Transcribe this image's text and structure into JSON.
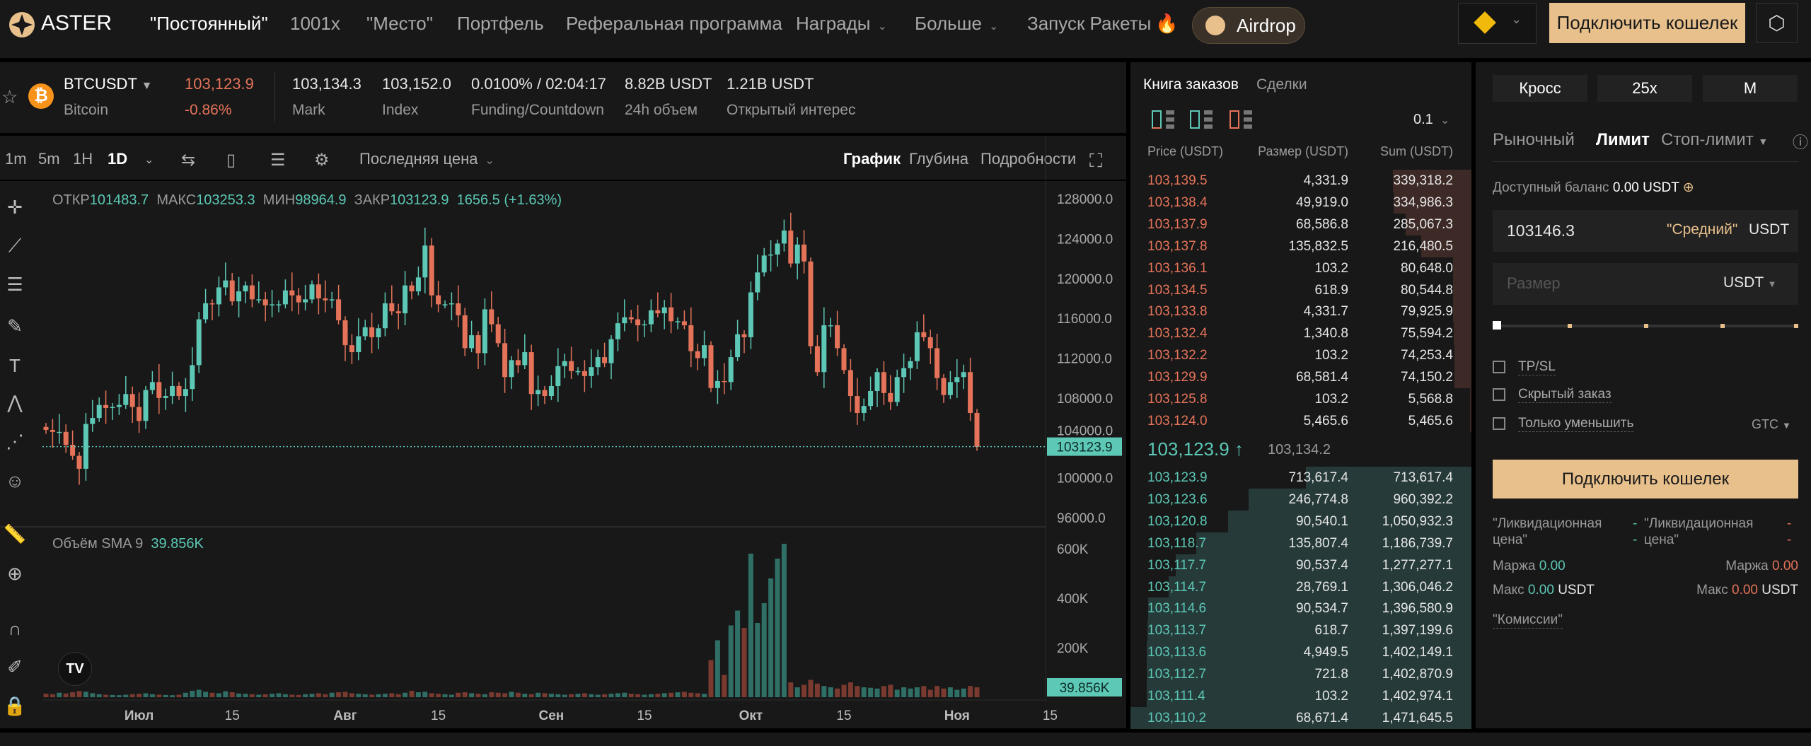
{
  "nav": {
    "brand": "ASTER",
    "items": [
      "\"Постоянный\"",
      "1001x",
      "\"Место\"",
      "Портфель",
      "Реферальная программа",
      "Награды",
      "Больше",
      "Запуск Ракеты"
    ],
    "airdrop": "Airdrop",
    "connect": "Подключить кошелек"
  },
  "ticker": {
    "symbol": "BTCUSDT",
    "name": "Bitcoin",
    "last": "103,123.9",
    "change": "-0.86%",
    "mark": "103,134.3",
    "mark_label": "Mark",
    "index": "103,152.0",
    "index_label": "Index",
    "funding": "0.0100% / 02:04:17",
    "funding_label": "Funding/Countdown",
    "volume": "8.82B USDT",
    "volume_label": "24h объем",
    "oi": "1.21B USDT",
    "oi_label": "Открытый интерес"
  },
  "toolbar": {
    "intervals": [
      "1m",
      "5m",
      "1H",
      "1D"
    ],
    "price_type": "Последняя цена",
    "views": [
      "График",
      "Глубина",
      "Подробности"
    ]
  },
  "legend": {
    "o_label": "ОТКР",
    "o": "101483.7",
    "h_label": "МАКС",
    "h": "103253.3",
    "l_label": "МИН",
    "l": "98964.9",
    "c_label": "ЗАКР",
    "c": "103123.9",
    "chg": "1656.5 (+1.63%)",
    "vol_label": "Объём SMA 9",
    "vol": "39.856K"
  },
  "chart_data": {
    "type": "candlestick",
    "title": "BTCUSDT 1D",
    "start_date": "2025-06-17",
    "unit": "thousand USDT",
    "closes": [
      104.8,
      104.6,
      104.6,
      103.3,
      102.2,
      100.9,
      105.4,
      106.0,
      107.3,
      107.0,
      107.1,
      107.3,
      108.4,
      107.1,
      105.7,
      108.8,
      109.6,
      108.0,
      108.2,
      109.2,
      108.2,
      108.9,
      111.3,
      115.9,
      117.5,
      117.4,
      119.1,
      119.8,
      117.7,
      118.7,
      119.3,
      117.9,
      117.9,
      117.3,
      117.4,
      117.4,
      118.8,
      118.3,
      117.6,
      117.9,
      119.4,
      118.0,
      117.8,
      117.9,
      115.8,
      113.3,
      112.6,
      114.2,
      115.1,
      114.1,
      115.0,
      117.5,
      116.7,
      116.5,
      119.3,
      118.7,
      120.1,
      123.3,
      118.3,
      117.4,
      117.4,
      117.5,
      116.3,
      113.0,
      114.3,
      112.5,
      116.9,
      115.4,
      113.5,
      110.1,
      111.8,
      111.3,
      112.6,
      108.4,
      108.8,
      108.2,
      109.2,
      111.2,
      111.7,
      110.7,
      110.7,
      110.2,
      111.1,
      112.1,
      111.5,
      113.9,
      115.5,
      116.1,
      115.9,
      115.3,
      115.4,
      116.8,
      116.5,
      117.1,
      115.7,
      115.7,
      115.3,
      112.7,
      112.0,
      113.3,
      109.0,
      109.7,
      109.6,
      112.1,
      114.4,
      114.1,
      118.6,
      120.6,
      122.3,
      122.4,
      123.5,
      124.8,
      121.5,
      123.4,
      121.7,
      113.2,
      110.6,
      115.3,
      115.3,
      113.0,
      110.8,
      108.2,
      106.5,
      107.2,
      108.7,
      110.6,
      108.5,
      107.6,
      110.1,
      111.0,
      111.7,
      114.6,
      114.1,
      113.0,
      110.0,
      108.3,
      109.6,
      110.1,
      110.6,
      106.5,
      103.1
    ],
    "volumes_k": [
      14,
      12,
      18,
      15,
      20,
      25,
      22,
      16,
      12,
      10,
      9,
      8,
      10,
      12,
      14,
      16,
      12,
      10,
      9,
      8,
      10,
      18,
      26,
      30,
      22,
      18,
      16,
      24,
      20,
      15,
      14,
      12,
      10,
      12,
      14,
      16,
      12,
      10,
      9,
      12,
      14,
      16,
      12,
      18,
      20,
      22,
      16,
      14,
      12,
      10,
      12,
      14,
      16,
      12,
      18,
      26,
      20,
      22,
      16,
      14,
      12,
      10,
      18,
      20,
      16,
      14,
      12,
      20,
      18,
      16,
      22,
      18,
      14,
      12,
      18,
      16,
      14,
      12,
      10,
      12,
      14,
      16,
      12,
      10,
      12,
      14,
      16,
      18,
      14,
      12,
      10,
      12,
      14,
      16,
      18,
      20,
      22,
      18,
      16,
      14,
      150,
      230,
      90,
      290,
      350,
      280,
      580,
      300,
      380,
      480,
      560,
      620,
      60,
      40,
      50,
      70,
      55,
      45,
      40,
      35,
      50,
      60,
      45,
      40,
      38,
      35,
      45,
      50,
      30,
      40,
      35,
      40,
      45,
      30,
      45,
      35,
      40,
      30,
      35,
      45,
      40
    ],
    "y_ticks": [
      "128000.0",
      "124000.0",
      "120000.0",
      "116000.0",
      "112000.0",
      "108000.0",
      "104000.0",
      "100000.0",
      "96000.0"
    ],
    "vol_ticks": [
      "600K",
      "400K",
      "200K"
    ],
    "x_ticks": [
      "Июл",
      "15",
      "Авг",
      "15",
      "Сен",
      "15",
      "Окт",
      "15",
      "Ноя",
      "15"
    ],
    "current_price": "103123.9",
    "current_volume": "39.856K"
  },
  "book": {
    "tabs": [
      "Книга заказов",
      "Сделки"
    ],
    "step": "0.1",
    "headers": [
      "Price (USDT)",
      "Размер (USDT)",
      "Sum (USDT)"
    ],
    "asks": [
      [
        "103,139.5",
        "4,331.9",
        "339,318.2"
      ],
      [
        "103,138.4",
        "49,919.0",
        "334,986.3"
      ],
      [
        "103,137.9",
        "68,586.8",
        "285,067.3"
      ],
      [
        "103,137.8",
        "135,832.5",
        "216,480.5"
      ],
      [
        "103,136.1",
        "103.2",
        "80,648.0"
      ],
      [
        "103,134.5",
        "618.9",
        "80,544.8"
      ],
      [
        "103,133.8",
        "4,331.7",
        "79,925.9"
      ],
      [
        "103,132.4",
        "1,340.8",
        "75,594.2"
      ],
      [
        "103,132.2",
        "103.2",
        "74,253.4"
      ],
      [
        "103,129.9",
        "68,581.4",
        "74,150.2"
      ],
      [
        "103,125.8",
        "103.2",
        "5,568.8"
      ],
      [
        "103,124.0",
        "5,465.6",
        "5,465.6"
      ]
    ],
    "mid": "103,123.9",
    "mid_arrow": "↑",
    "mark": "103,134.2",
    "bids": [
      [
        "103,123.9",
        "713,617.4",
        "713,617.4"
      ],
      [
        "103,123.6",
        "246,774.8",
        "960,392.2"
      ],
      [
        "103,120.8",
        "90,540.1",
        "1,050,932.3"
      ],
      [
        "103,118.7",
        "135,807.4",
        "1,186,739.7"
      ],
      [
        "103,117.7",
        "90,537.4",
        "1,277,277.1"
      ],
      [
        "103,114.7",
        "28,769.1",
        "1,306,046.2"
      ],
      [
        "103,114.6",
        "90,534.7",
        "1,396,580.9"
      ],
      [
        "103,113.7",
        "618.7",
        "1,397,199.6"
      ],
      [
        "103,113.6",
        "4,949.5",
        "1,402,149.1"
      ],
      [
        "103,112.7",
        "721.8",
        "1,402,870.9"
      ],
      [
        "103,111.4",
        "103.2",
        "1,402,974.1"
      ],
      [
        "103,110.2",
        "68,671.4",
        "1,471,645.5"
      ]
    ]
  },
  "order": {
    "margin_mode": "Кросс",
    "leverage": "25x",
    "mode": "M",
    "types": [
      "Рыночный",
      "Лимит",
      "Стоп-лимит"
    ],
    "balance_label": "Доступный баланс",
    "balance": "0.00 USDT",
    "price": "103146.3",
    "mid_label": "\"Средний\"",
    "price_unit": "USDT",
    "size_placeholder": "Размер",
    "size_unit": "USDT",
    "slider_percent": 0,
    "tpsl": "TP/SL",
    "hidden": "Скрытый заказ",
    "reduce": "Только уменьшить",
    "tif": "GTC",
    "connect": "Подключить кошелек",
    "liq_label": "\"Ликвидационная",
    "liq_label2": "цена\"",
    "dash": "-",
    "margin_label": "Маржа",
    "margin_long": "0.00",
    "margin_short": "0.00",
    "max_label": "Макс",
    "max_long": "0.00",
    "max_short": "0.00",
    "max_unit": "USDT",
    "fees": "\"Комиссии\""
  },
  "colors": {
    "up": "#5cc8b5",
    "down": "#e5735a",
    "accent": "#e8c08c"
  }
}
